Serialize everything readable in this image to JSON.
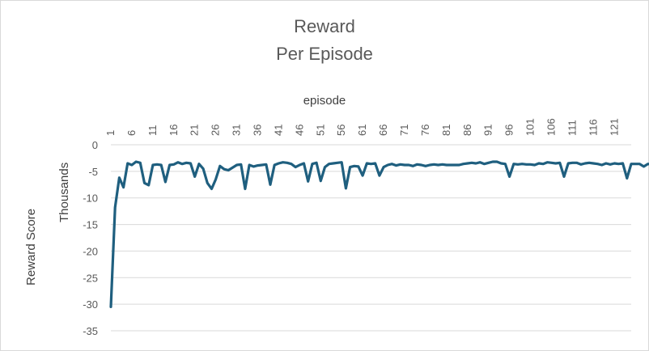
{
  "chart_data": {
    "type": "line",
    "title": "Reward",
    "subtitle": "Per Episode",
    "xlabel": "episode",
    "ylabel": "Reward Score",
    "ylabel_units": "Thousands",
    "x_axis_position": "top",
    "grid": true,
    "legend": "none",
    "xlim": [
      1,
      125
    ],
    "ylim": [
      -35000,
      0
    ],
    "y_ticks": [
      0,
      -5000,
      -10000,
      -15000,
      -20000,
      -25000,
      -30000,
      -35000
    ],
    "y_tick_labels": [
      "0",
      "-5",
      "-10",
      "-15",
      "-20",
      "-25",
      "-30",
      "-35"
    ],
    "x_ticks": [
      1,
      6,
      11,
      16,
      21,
      26,
      31,
      36,
      41,
      46,
      51,
      56,
      61,
      66,
      71,
      76,
      81,
      86,
      91,
      96,
      101,
      106,
      111,
      116,
      121
    ],
    "x_tick_labels": [
      "1",
      "6",
      "11",
      "16",
      "21",
      "26",
      "31",
      "36",
      "41",
      "46",
      "51",
      "56",
      "61",
      "66",
      "71",
      "76",
      "81",
      "86",
      "91",
      "96",
      "101",
      "106",
      "111",
      "116",
      "121"
    ],
    "series": [
      {
        "color": "#1f5f7f",
        "values": [
          -30500,
          -11800,
          -6200,
          -8000,
          -3500,
          -3800,
          -3200,
          -3400,
          -7200,
          -7600,
          -3800,
          -3700,
          -3800,
          -7000,
          -3800,
          -3700,
          -3300,
          -3600,
          -3400,
          -3500,
          -6000,
          -3600,
          -4500,
          -7200,
          -8300,
          -6500,
          -4000,
          -4600,
          -4800,
          -4300,
          -3800,
          -3700,
          -8300,
          -3800,
          -4100,
          -3900,
          -3800,
          -3700,
          -7500,
          -3800,
          -3500,
          -3300,
          -3400,
          -3600,
          -4200,
          -3800,
          -3500,
          -6900,
          -3600,
          -3400,
          -6800,
          -4200,
          -3600,
          -3500,
          -3400,
          -3300,
          -8200,
          -4200,
          -4000,
          -4100,
          -5800,
          -3500,
          -3600,
          -3500,
          -5800,
          -4200,
          -3800,
          -3600,
          -3900,
          -3700,
          -3800,
          -3800,
          -4000,
          -3700,
          -3800,
          -4000,
          -3800,
          -3700,
          -3800,
          -3700,
          -3800,
          -3800,
          -3800,
          -3800,
          -3600,
          -3500,
          -3400,
          -3500,
          -3300,
          -3600,
          -3400,
          -3200,
          -3200,
          -3500,
          -3600,
          -6000,
          -3600,
          -3700,
          -3600,
          -3700,
          -3700,
          -3800,
          -3500,
          -3600,
          -3300,
          -3400,
          -3500,
          -3400,
          -6000,
          -3500,
          -3400,
          -3400,
          -3700,
          -3500,
          -3400,
          -3500,
          -3600,
          -3800,
          -3500,
          -3700,
          -3500,
          -3600,
          -3500,
          -6300,
          -3600,
          -3600,
          -3600,
          -4100,
          -3600,
          -3700,
          -4200,
          -3600,
          -3600
        ]
      }
    ]
  }
}
